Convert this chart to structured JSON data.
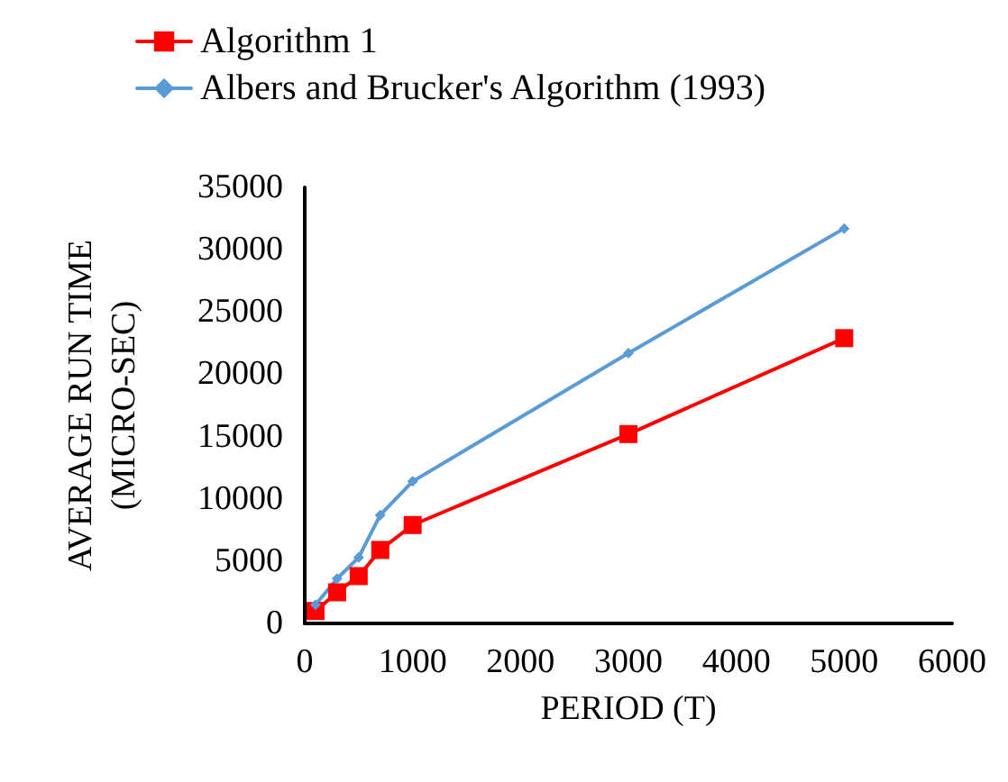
{
  "chart_data": {
    "type": "line",
    "xlabel": "PERIOD (T)",
    "ylabel": "AVERAGE RUN TIME\n(MICRO-SEC)",
    "x": [
      100,
      300,
      500,
      700,
      1000,
      3000,
      5000
    ],
    "series": [
      {
        "name": "Algorithm 1",
        "color": "#ff0000",
        "marker": "square",
        "values": [
          1000,
          2500,
          3800,
          5900,
          7900,
          15200,
          22900
        ]
      },
      {
        "name": "Albers and Brucker's Algorithm (1993)",
        "color": "#5b9bd5",
        "marker": "diamond",
        "values": [
          1500,
          3600,
          5300,
          8700,
          11400,
          21700,
          31700
        ]
      }
    ],
    "xlim": [
      0,
      6000
    ],
    "xticks": [
      0,
      1000,
      2000,
      3000,
      4000,
      5000,
      6000
    ],
    "ylim": [
      0,
      35000
    ],
    "yticks": [
      0,
      5000,
      10000,
      15000,
      20000,
      25000,
      30000,
      35000
    ],
    "grid": false,
    "legend": "top left"
  }
}
